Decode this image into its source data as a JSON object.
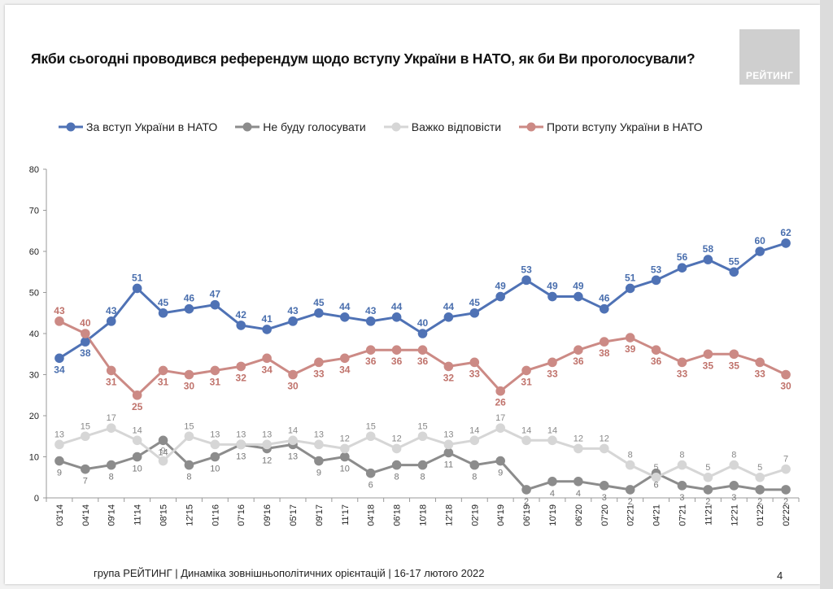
{
  "title": "Якби сьогодні проводився референдум щодо вступу України в НАТО, як би Ви проголосували?",
  "logo_text": "РЕЙТИНГ",
  "footer": "група РЕЙТИНГ |  Динаміка зовнішньополітичних орієнтацій | 16-17 лютого 2022",
  "page_number": "4",
  "chart_data": {
    "type": "line",
    "x": [
      "03'14",
      "04'14",
      "09'14",
      "11'14",
      "08'15",
      "12'15",
      "01'16",
      "07'16",
      "09'16",
      "05'17",
      "09'17",
      "11'17",
      "04'18",
      "06'18",
      "10'18",
      "12'18",
      "02'19",
      "04'19",
      "06'19",
      "10'19",
      "06'20",
      "07'20",
      "02'21",
      "04'21",
      "07'21",
      "11'21",
      "12'21",
      "01'22",
      "02'22"
    ],
    "ylim": [
      0,
      80
    ],
    "yticks": [
      "0",
      "10",
      "20",
      "30",
      "40",
      "50",
      "60",
      "70",
      "80"
    ],
    "grid": false,
    "legend": "top",
    "series": [
      {
        "name": "За вступ України в НАТО",
        "color": "#4f72b5",
        "label_color": "#4a6fae",
        "values": [
          34,
          38,
          43,
          51,
          45,
          46,
          47,
          42,
          41,
          43,
          45,
          44,
          43,
          44,
          40,
          44,
          45,
          49,
          53,
          49,
          49,
          46,
          51,
          53,
          56,
          58,
          55,
          60,
          62
        ]
      },
      {
        "name": "Не буду голосувати",
        "color": "#8c8c8c",
        "label_color": "#777777",
        "values": [
          9,
          7,
          8,
          10,
          14,
          8,
          10,
          13,
          12,
          13,
          9,
          10,
          6,
          8,
          8,
          11,
          8,
          9,
          2,
          4,
          4,
          3,
          2,
          6,
          3,
          2,
          3,
          2,
          2
        ]
      },
      {
        "name": "Важко відповісти",
        "color": "#d6d6d6",
        "label_color": "#888888",
        "values": [
          13,
          15,
          17,
          14,
          9,
          15,
          13,
          13,
          13,
          14,
          13,
          12,
          15,
          12,
          15,
          13,
          14,
          17,
          14,
          14,
          12,
          12,
          8,
          5,
          8,
          5,
          8,
          5,
          7
        ]
      },
      {
        "name": "Проти вступу України в НАТО",
        "color": "#cc8a85",
        "label_color": "#c0736c",
        "values": [
          43,
          40,
          31,
          25,
          31,
          30,
          31,
          32,
          34,
          30,
          33,
          34,
          36,
          36,
          36,
          32,
          33,
          26,
          31,
          33,
          36,
          38,
          39,
          36,
          33,
          35,
          35,
          33,
          30
        ]
      }
    ]
  }
}
